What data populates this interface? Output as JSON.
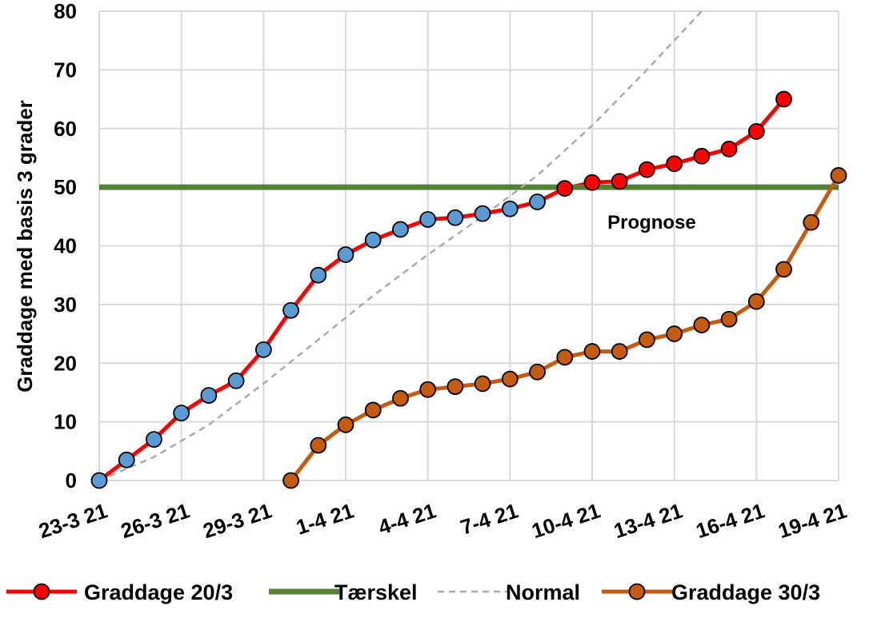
{
  "chart_data": {
    "type": "line",
    "ylabel": "Graddage med basis 3 grader",
    "ylim": [
      0,
      80
    ],
    "yticks": [
      0,
      10,
      20,
      30,
      40,
      50,
      60,
      70,
      80
    ],
    "xlim": [
      "23-3 21",
      "19-4 21"
    ],
    "xticks": [
      "23-3 21",
      "26-3 21",
      "29-3 21",
      "1-4 21",
      "4-4 21",
      "7-4 21",
      "10-4 21",
      "13-4 21",
      "16-4 21",
      "19-4 21"
    ],
    "grid": true,
    "legend_position": "bottom",
    "annotations": [
      {
        "text": "Prognose",
        "x": "12-4 21",
        "y": 44
      }
    ],
    "series": [
      {
        "name": "Graddage 20/3",
        "style": "line-markers",
        "color": "#ff0000",
        "marker_fill": "#5b9bd5",
        "forecast_marker_fill": "#ff0000",
        "forecast_from": "9-4 21",
        "points": [
          {
            "x": "23-3 21",
            "y": 0
          },
          {
            "x": "24-3 21",
            "y": 3.5
          },
          {
            "x": "25-3 21",
            "y": 7
          },
          {
            "x": "26-3 21",
            "y": 11.5
          },
          {
            "x": "27-3 21",
            "y": 14.5
          },
          {
            "x": "28-3 21",
            "y": 17
          },
          {
            "x": "29-3 21",
            "y": 22.3
          },
          {
            "x": "30-3 21",
            "y": 29
          },
          {
            "x": "31-3 21",
            "y": 35
          },
          {
            "x": "1-4 21",
            "y": 38.5
          },
          {
            "x": "2-4 21",
            "y": 41
          },
          {
            "x": "3-4 21",
            "y": 42.8
          },
          {
            "x": "4-4 21",
            "y": 44.5
          },
          {
            "x": "5-4 21",
            "y": 44.8
          },
          {
            "x": "6-4 21",
            "y": 45.5
          },
          {
            "x": "7-4 21",
            "y": 46.3
          },
          {
            "x": "8-4 21",
            "y": 47.5
          },
          {
            "x": "9-4 21",
            "y": 49.8
          },
          {
            "x": "10-4 21",
            "y": 50.8
          },
          {
            "x": "11-4 21",
            "y": 51
          },
          {
            "x": "12-4 21",
            "y": 53
          },
          {
            "x": "13-4 21",
            "y": 54
          },
          {
            "x": "14-4 21",
            "y": 55.3
          },
          {
            "x": "15-4 21",
            "y": 56.5
          },
          {
            "x": "16-4 21",
            "y": 59.5
          },
          {
            "x": "17-4 21",
            "y": 65
          }
        ]
      },
      {
        "name": "Tærskel",
        "style": "line",
        "color": "#548235",
        "points": [
          {
            "x": "23-3 21",
            "y": 50
          },
          {
            "x": "19-4 21",
            "y": 50
          }
        ]
      },
      {
        "name": "Normal",
        "style": "dashed",
        "color": "#aaaaaa",
        "points": [
          {
            "x": "23-3 21",
            "y": 0
          },
          {
            "x": "25-3 21",
            "y": 4
          },
          {
            "x": "27-3 21",
            "y": 9.5
          },
          {
            "x": "29-3 21",
            "y": 16.5
          },
          {
            "x": "31-3 21",
            "y": 24
          },
          {
            "x": "2-4 21",
            "y": 31.5
          },
          {
            "x": "4-4 21",
            "y": 38.5
          },
          {
            "x": "6-4 21",
            "y": 45
          },
          {
            "x": "8-4 21",
            "y": 52
          },
          {
            "x": "10-4 21",
            "y": 60.5
          },
          {
            "x": "12-4 21",
            "y": 70
          },
          {
            "x": "14-4 21",
            "y": 80
          }
        ]
      },
      {
        "name": "Graddage 30/3",
        "style": "line-markers",
        "color": "#c55a11",
        "marker_fill": "#c55a11",
        "points": [
          {
            "x": "30-3 21",
            "y": 0
          },
          {
            "x": "31-3 21",
            "y": 6
          },
          {
            "x": "1-4 21",
            "y": 9.5
          },
          {
            "x": "2-4 21",
            "y": 12
          },
          {
            "x": "3-4 21",
            "y": 14
          },
          {
            "x": "4-4 21",
            "y": 15.5
          },
          {
            "x": "5-4 21",
            "y": 16
          },
          {
            "x": "6-4 21",
            "y": 16.5
          },
          {
            "x": "7-4 21",
            "y": 17.3
          },
          {
            "x": "8-4 21",
            "y": 18.5
          },
          {
            "x": "9-4 21",
            "y": 21
          },
          {
            "x": "10-4 21",
            "y": 22
          },
          {
            "x": "11-4 21",
            "y": 22
          },
          {
            "x": "12-4 21",
            "y": 24
          },
          {
            "x": "13-4 21",
            "y": 25
          },
          {
            "x": "14-4 21",
            "y": 26.5
          },
          {
            "x": "15-4 21",
            "y": 27.5
          },
          {
            "x": "16-4 21",
            "y": 30.5
          },
          {
            "x": "17-4 21",
            "y": 36
          },
          {
            "x": "18-4 21",
            "y": 44
          },
          {
            "x": "19-4 21",
            "y": 52
          }
        ]
      }
    ]
  }
}
